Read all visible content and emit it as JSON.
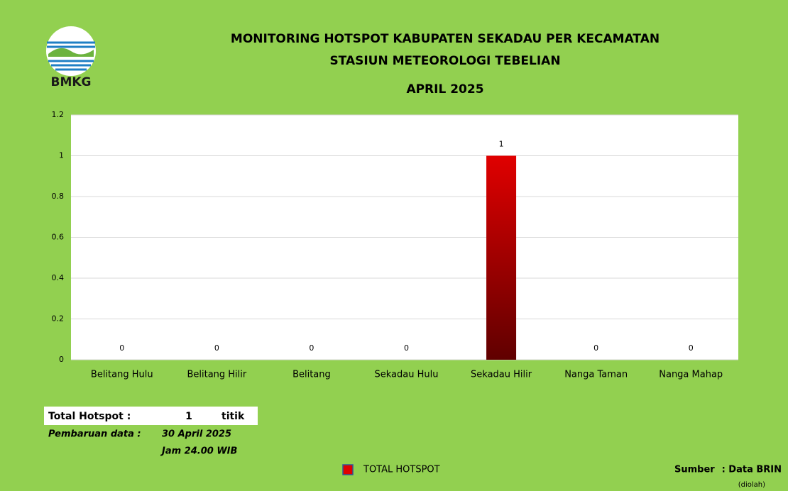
{
  "chart_data": {
    "type": "bar",
    "title": "MONITORING HOTSPOT KABUPATEN SEKADAU PER KECAMATAN",
    "subtitle": "STASIUN METEOROLOGI TEBELIAN",
    "period": "APRIL 2025",
    "categories": [
      "Belitang Hulu",
      "Belitang Hilir",
      "Belitang",
      "Sekadau Hulu",
      "Sekadau Hilir",
      "Nanga Taman",
      "Nanga Mahap"
    ],
    "series": [
      {
        "name": "TOTAL HOTSPOT",
        "color": "#e00000",
        "values": [
          0,
          0,
          0,
          0,
          1,
          0,
          0
        ]
      }
    ],
    "ylim": [
      0,
      1.2
    ],
    "yticks": [
      0,
      0.2,
      0.4,
      0.6,
      0.8,
      1,
      1.2
    ],
    "grid": true,
    "legend": "bottom"
  },
  "logo": "BMKG",
  "summary": {
    "total_label": "Total Hotspot :",
    "total": 1,
    "unit": "titik",
    "update_label": "Pembaruan data :",
    "update_date": "30 April 2025",
    "update_time": "Jam 24.00 WIB"
  },
  "source": {
    "label": "Sumber",
    "value": ": Data BRIN",
    "note": "(diolah)"
  }
}
